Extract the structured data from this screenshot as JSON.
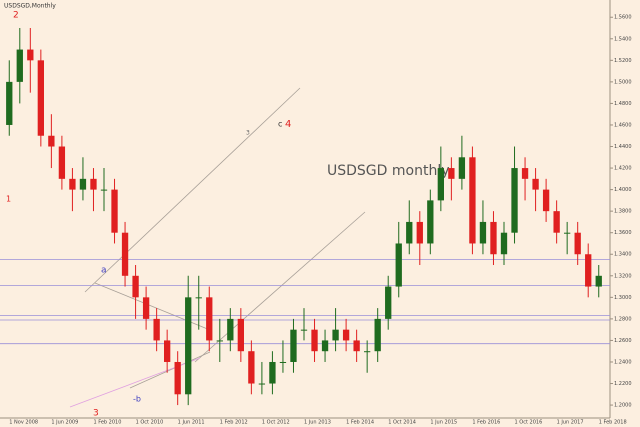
{
  "chart_data": {
    "type": "candlestick",
    "symbol": "USDSGD,Monthly",
    "label": "USDSGD monthly",
    "annotations": [
      "2",
      "1",
      "3",
      "a",
      "-b",
      "c",
      "4",
      "3"
    ],
    "categories": [
      "1 Nov 2008",
      null,
      null,
      null,
      "1 Jun 2009",
      null,
      null,
      null,
      "1 Feb 2010",
      null,
      null,
      null,
      "1 Oct 2010",
      null,
      null,
      null,
      "1 Jun 2011",
      null,
      null,
      null,
      "1 Feb 2012",
      null,
      null,
      null,
      "1 Oct 2012",
      null,
      null,
      null,
      "1 Jun 2013",
      null,
      null,
      null,
      "1 Feb 2014",
      null,
      null,
      null,
      "1 Oct 2014",
      null,
      null,
      null,
      "1 Jun 2015",
      null,
      null,
      null,
      "1 Feb 2016",
      null,
      null,
      null,
      "1 Oct 2016",
      null,
      null,
      null,
      "1 Jun 2017",
      null,
      null,
      null,
      "1 Feb 2018"
    ],
    "open": [
      1.46,
      1.5,
      1.53,
      1.52,
      1.45,
      1.44,
      1.41,
      1.4,
      1.41,
      1.4,
      1.4,
      1.36,
      1.32,
      1.3,
      1.28,
      1.26,
      1.24,
      1.21,
      1.3,
      1.3,
      1.26,
      1.26,
      1.28,
      1.25,
      1.22,
      1.22,
      1.24,
      1.24,
      1.27,
      1.27,
      1.25,
      1.26,
      1.27,
      1.26,
      1.25,
      1.25,
      1.28,
      1.31,
      1.35,
      1.37,
      1.35,
      1.39,
      1.42,
      1.41,
      1.43,
      1.35,
      1.37,
      1.34,
      1.36,
      1.42,
      1.41,
      1.4,
      1.38,
      1.36,
      1.36,
      1.34,
      1.31
    ],
    "high": [
      1.52,
      1.55,
      1.55,
      1.53,
      1.47,
      1.45,
      1.42,
      1.43,
      1.42,
      1.42,
      1.41,
      1.37,
      1.33,
      1.31,
      1.29,
      1.27,
      1.25,
      1.32,
      1.32,
      1.31,
      1.28,
      1.29,
      1.29,
      1.26,
      1.24,
      1.25,
      1.26,
      1.28,
      1.29,
      1.28,
      1.27,
      1.29,
      1.28,
      1.27,
      1.26,
      1.29,
      1.32,
      1.37,
      1.39,
      1.38,
      1.4,
      1.44,
      1.43,
      1.45,
      1.44,
      1.39,
      1.38,
      1.37,
      1.44,
      1.43,
      1.42,
      1.41,
      1.39,
      1.37,
      1.37,
      1.35,
      1.33
    ],
    "low": [
      1.45,
      1.48,
      1.49,
      1.44,
      1.42,
      1.4,
      1.38,
      1.39,
      1.38,
      1.38,
      1.35,
      1.31,
      1.28,
      1.27,
      1.25,
      1.23,
      1.2,
      1.2,
      1.27,
      1.25,
      1.24,
      1.25,
      1.24,
      1.21,
      1.21,
      1.21,
      1.23,
      1.23,
      1.26,
      1.24,
      1.24,
      1.25,
      1.25,
      1.24,
      1.23,
      1.24,
      1.27,
      1.3,
      1.34,
      1.33,
      1.34,
      1.38,
      1.39,
      1.4,
      1.34,
      1.34,
      1.33,
      1.33,
      1.35,
      1.39,
      1.38,
      1.37,
      1.35,
      1.34,
      1.33,
      1.3,
      1.3
    ],
    "close": [
      1.5,
      1.53,
      1.52,
      1.45,
      1.44,
      1.41,
      1.4,
      1.41,
      1.4,
      1.4,
      1.36,
      1.32,
      1.3,
      1.28,
      1.26,
      1.24,
      1.21,
      1.3,
      1.3,
      1.26,
      1.26,
      1.28,
      1.25,
      1.22,
      1.22,
      1.24,
      1.24,
      1.27,
      1.27,
      1.25,
      1.26,
      1.27,
      1.26,
      1.25,
      1.25,
      1.28,
      1.31,
      1.35,
      1.37,
      1.35,
      1.39,
      1.42,
      1.41,
      1.43,
      1.35,
      1.37,
      1.34,
      1.36,
      1.42,
      1.41,
      1.4,
      1.38,
      1.36,
      1.36,
      1.34,
      1.31,
      1.32
    ],
    "up_color": "#1f6b1f",
    "down_color": "#e02020",
    "levels": [
      1.335,
      1.311,
      1.283,
      1.279,
      1.257
    ],
    "level_color": "#9a8fd8",
    "ylim": [
      1.188,
      1.576
    ],
    "yticks": [
      {
        "value": 1.2,
        "label": "1.2000"
      },
      {
        "value": 1.22,
        "label": "1.2200"
      },
      {
        "value": 1.24,
        "label": "1.2400"
      },
      {
        "value": 1.26,
        "label": "1.2600"
      },
      {
        "value": 1.28,
        "label": "1.2800"
      },
      {
        "value": 1.3,
        "label": "1.3000"
      },
      {
        "value": 1.32,
        "label": "1.3200"
      },
      {
        "value": 1.34,
        "label": "1.3400"
      },
      {
        "value": 1.36,
        "label": "1.3600"
      },
      {
        "value": 1.38,
        "label": "1.3800"
      },
      {
        "value": 1.4,
        "label": "1.4000"
      },
      {
        "value": 1.42,
        "label": "1.4200"
      },
      {
        "value": 1.44,
        "label": "1.4400"
      },
      {
        "value": 1.46,
        "label": "1.4600"
      },
      {
        "value": 1.48,
        "label": "1.4800"
      },
      {
        "value": 1.5,
        "label": "1.5000"
      },
      {
        "value": 1.52,
        "label": "1.5200"
      },
      {
        "value": 1.54,
        "label": "1.5400"
      },
      {
        "value": 1.56,
        "label": "1.5600"
      }
    ]
  }
}
